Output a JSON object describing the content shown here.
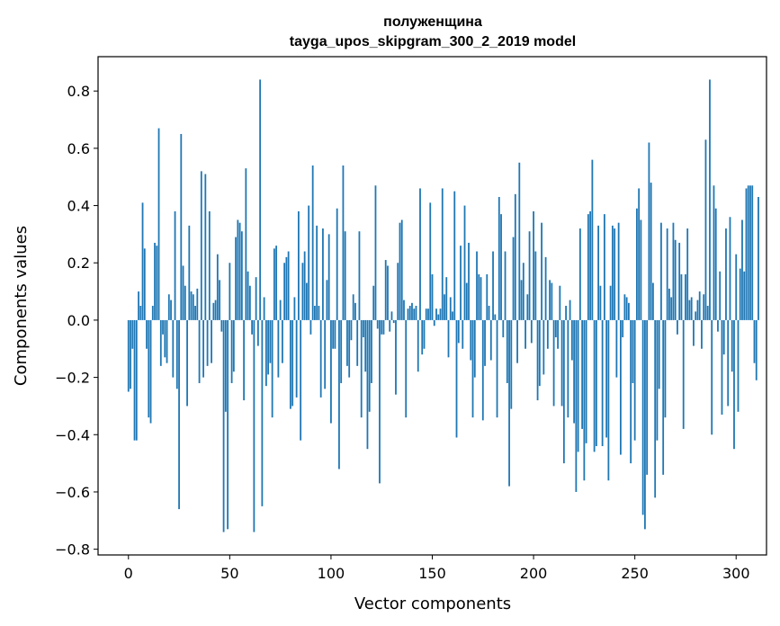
{
  "chart_data": {
    "type": "bar",
    "title": "полуженщина",
    "subtitle": "tayga_upos_skipgram_300_2_2019 model",
    "xlabel": "Vector components",
    "ylabel": "Components values",
    "xlim": [
      -15,
      315
    ],
    "ylim": [
      -0.82,
      0.92
    ],
    "xticks": [
      0,
      50,
      100,
      150,
      200,
      250,
      300
    ],
    "xtick_labels": [
      "0",
      "50",
      "100",
      "150",
      "200",
      "250",
      "300"
    ],
    "yticks": [
      -0.8,
      -0.6,
      -0.4,
      -0.2,
      0.0,
      0.2,
      0.4,
      0.6,
      0.8
    ],
    "ytick_labels": [
      "−0.8",
      "−0.6",
      "−0.4",
      "−0.2",
      "0.0",
      "0.2",
      "0.4",
      "0.6",
      "0.8"
    ],
    "grid": false,
    "bar_color": "#1f77b4",
    "values": [
      -0.25,
      -0.24,
      -0.1,
      -0.42,
      -0.42,
      0.1,
      0.05,
      0.41,
      0.25,
      -0.1,
      -0.34,
      -0.36,
      0.05,
      0.27,
      0.26,
      0.67,
      -0.16,
      -0.05,
      -0.13,
      -0.15,
      0.09,
      0.07,
      -0.2,
      0.38,
      -0.24,
      -0.66,
      0.65,
      0.19,
      0.12,
      -0.3,
      0.33,
      0.1,
      0.09,
      0.05,
      0.11,
      -0.22,
      0.52,
      -0.2,
      0.51,
      -0.16,
      0.38,
      -0.15,
      0.06,
      0.07,
      0.23,
      0.14,
      -0.04,
      -0.74,
      -0.32,
      -0.73,
      0.2,
      -0.22,
      -0.18,
      0.29,
      0.35,
      0.34,
      0.31,
      -0.28,
      0.53,
      0.17,
      0.12,
      -0.05,
      -0.74,
      0.15,
      -0.09,
      0.84,
      -0.65,
      0.08,
      -0.23,
      -0.19,
      -0.15,
      -0.34,
      0.25,
      0.26,
      -0.2,
      0.07,
      -0.15,
      0.2,
      0.22,
      0.24,
      -0.31,
      -0.3,
      0.08,
      -0.27,
      0.38,
      -0.42,
      0.2,
      0.24,
      0.13,
      0.4,
      -0.05,
      0.54,
      0.05,
      0.33,
      0.05,
      -0.27,
      0.32,
      -0.24,
      0.14,
      0.3,
      -0.36,
      -0.1,
      -0.1,
      0.39,
      -0.52,
      -0.22,
      0.54,
      0.31,
      -0.16,
      -0.2,
      -0.07,
      0.09,
      0.06,
      -0.16,
      0.31,
      -0.34,
      -0.06,
      -0.18,
      -0.45,
      -0.32,
      -0.22,
      0.12,
      0.47,
      -0.03,
      -0.57,
      -0.05,
      -0.05,
      0.21,
      0.19,
      -0.04,
      0.03,
      -0.01,
      -0.26,
      0.2,
      0.34,
      0.35,
      0.07,
      -0.34,
      0.04,
      0.05,
      0.06,
      0.04,
      0.05,
      -0.18,
      0.46,
      -0.12,
      -0.1,
      0.04,
      0.04,
      0.41,
      0.16,
      -0.02,
      0.04,
      0.02,
      0.04,
      0.46,
      0.09,
      0.15,
      -0.13,
      0.08,
      0.03,
      0.45,
      -0.41,
      -0.08,
      0.26,
      -0.1,
      0.4,
      0.13,
      0.27,
      -0.14,
      -0.34,
      -0.2,
      0.24,
      0.16,
      0.15,
      -0.35,
      -0.16,
      0.16,
      0.05,
      -0.14,
      0.24,
      0.02,
      -0.34,
      0.43,
      0.37,
      -0.06,
      0.24,
      -0.22,
      -0.58,
      -0.31,
      0.29,
      0.44,
      -0.15,
      0.55,
      0.14,
      0.2,
      -0.1,
      0.09,
      0.31,
      -0.08,
      0.38,
      0.24,
      -0.28,
      -0.23,
      0.34,
      -0.19,
      0.22,
      -0.1,
      0.14,
      0.13,
      -0.3,
      -0.06,
      -0.1,
      0.12,
      -0.3,
      -0.5,
      0.05,
      -0.34,
      0.07,
      -0.14,
      -0.36,
      -0.6,
      -0.46,
      0.32,
      -0.38,
      -0.56,
      -0.43,
      0.37,
      0.38,
      0.56,
      -0.46,
      -0.44,
      0.33,
      0.12,
      -0.44,
      0.37,
      -0.41,
      -0.56,
      0.12,
      0.33,
      0.32,
      -0.2,
      0.34,
      -0.47,
      -0.06,
      0.09,
      0.08,
      0.06,
      -0.5,
      -0.22,
      -0.42,
      0.39,
      0.46,
      0.35,
      -0.68,
      -0.73,
      -0.54,
      0.62,
      0.48,
      0.13,
      -0.62,
      -0.42,
      -0.24,
      0.34,
      -0.54,
      -0.34,
      0.32,
      0.11,
      0.08,
      0.34,
      0.28,
      -0.05,
      0.27,
      0.16,
      -0.38,
      0.16,
      0.32,
      0.07,
      0.08,
      -0.09,
      0.03,
      0.07,
      0.1,
      -0.1,
      0.09,
      0.63,
      0.05,
      0.84,
      -0.4,
      0.47,
      0.39,
      -0.04,
      0.17,
      -0.33,
      -0.12,
      0.32,
      -0.3,
      0.36,
      -0.18,
      -0.45,
      0.23,
      -0.32,
      0.18,
      0.35,
      0.17,
      0.46,
      0.47,
      0.47,
      0.47,
      -0.15,
      -0.21,
      0.43
    ]
  }
}
